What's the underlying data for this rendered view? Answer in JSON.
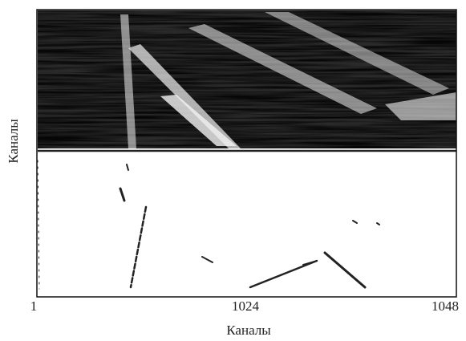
{
  "figure": {
    "y_label": "Каналы",
    "x_label": "Каналы",
    "x_tick_labels": [
      "1",
      "1024",
      "1048"
    ]
  }
}
